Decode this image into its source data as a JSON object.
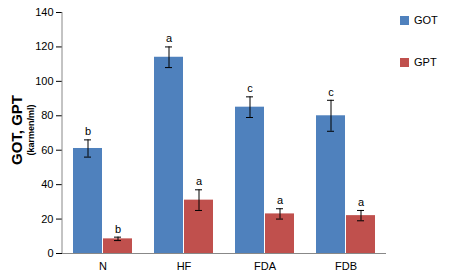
{
  "chart_data": {
    "type": "bar",
    "ylabel": "GOT, GPT",
    "yunit": "(karmen/ml)",
    "categories": [
      "N",
      "HF",
      "FDA",
      "FDB"
    ],
    "series": [
      {
        "name": "GOT",
        "color": "#4f81bd",
        "values": [
          61,
          114,
          85,
          80
        ],
        "errors": [
          5,
          6,
          6,
          9
        ],
        "letters": [
          "b",
          "a",
          "c",
          "c"
        ]
      },
      {
        "name": "GPT",
        "color": "#c0504d",
        "values": [
          8.5,
          31,
          23,
          22
        ],
        "errors": [
          1,
          6,
          3,
          3
        ],
        "letters": [
          "b",
          "a",
          "a",
          "a"
        ]
      }
    ],
    "ylim": [
      0,
      140
    ],
    "yticks": [
      0,
      20,
      40,
      60,
      80,
      100,
      120,
      140
    ],
    "grid": false,
    "legend": "right"
  }
}
